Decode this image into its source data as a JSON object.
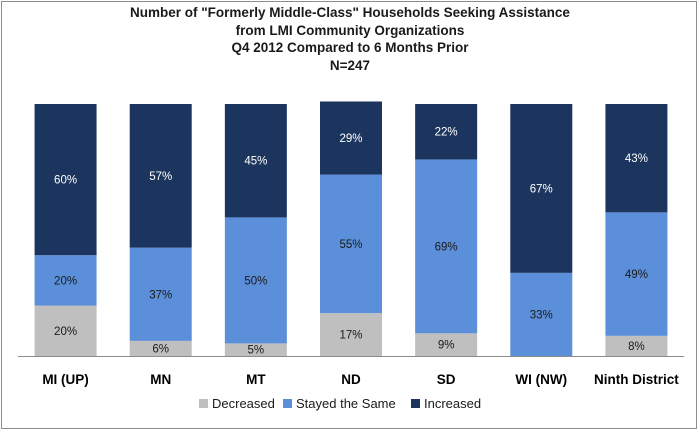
{
  "chart_data": {
    "type": "bar",
    "stacked": true,
    "title_lines": [
      "Number of \"Formerly Middle-Class\"  Households Seeking Assistance",
      "from LMI Community Organizations",
      "Q4 2012 Compared to 6 Months Prior",
      "N=247"
    ],
    "categories": [
      "MI (UP)",
      "MN",
      "MT",
      "ND",
      "SD",
      "WI (NW)",
      "Ninth District"
    ],
    "series": [
      {
        "name": "Decreased",
        "color": "#bfbfbf",
        "label_color": "#1a1a1a",
        "values": [
          20,
          6,
          5,
          17,
          9,
          0,
          8
        ],
        "labels": [
          "20%",
          "6%",
          "5%",
          "17%",
          "9%",
          "",
          "8%"
        ]
      },
      {
        "name": "Stayed the Same",
        "color": "#5b8fd9",
        "label_color": "#1a1a1a",
        "values": [
          20,
          37,
          50,
          55,
          69,
          33,
          49
        ],
        "labels": [
          "20%",
          "37%",
          "50%",
          "55%",
          "69%",
          "33%",
          "49%"
        ]
      },
      {
        "name": "Increased",
        "color": "#1c355e",
        "label_color": "#ffffff",
        "values": [
          60,
          57,
          45,
          29,
          22,
          67,
          43
        ],
        "labels": [
          "60%",
          "57%",
          "45%",
          "29%",
          "22%",
          "67%",
          "43%"
        ]
      }
    ],
    "ylim": [
      0,
      100
    ],
    "legend_position": "bottom",
    "grid": false
  }
}
